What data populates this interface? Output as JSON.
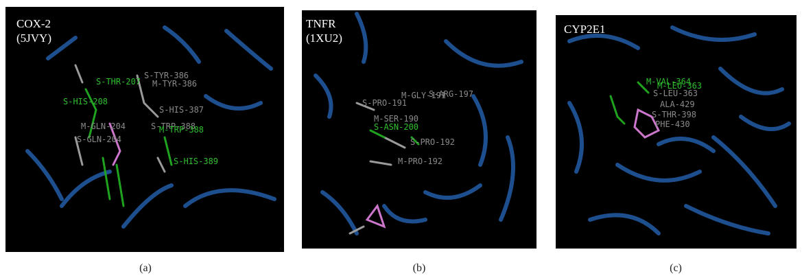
{
  "panels": [
    {
      "title": [
        "COX-2",
        "(5JVY)"
      ],
      "caption": "(a)",
      "residues": [
        {
          "label": "S-THR-207",
          "color": "#2fbf2f"
        },
        {
          "label": "S-TYR-386",
          "color": "#8a8a8a"
        },
        {
          "label": "M-TYR-386",
          "color": "#8a8a8a"
        },
        {
          "label": "S-HIS-208",
          "color": "#2fbf2f"
        },
        {
          "label": "S-HIS-387",
          "color": "#8a8a8a"
        },
        {
          "label": "M-GLN-204",
          "color": "#8a8a8a"
        },
        {
          "label": "S-TRP-388",
          "color": "#8a8a8a"
        },
        {
          "label": "M-TRP-388",
          "color": "#2fbf2f"
        },
        {
          "label": "S-GLN-204",
          "color": "#8a8a8a"
        },
        {
          "label": "S-HIS-389",
          "color": "#2fbf2f"
        }
      ]
    },
    {
      "title": [
        "TNFR",
        "(1XU2)"
      ],
      "caption": "(b)",
      "residues": [
        {
          "label": "M-GLY-191",
          "color": "#8a8a8a"
        },
        {
          "label": "S-ARG-197",
          "color": "#8a8a8a"
        },
        {
          "label": "S-PRO-191",
          "color": "#8a8a8a"
        },
        {
          "label": "M-SER-190",
          "color": "#8a8a8a"
        },
        {
          "label": "S-ASN-200",
          "color": "#2fbf2f"
        },
        {
          "label": "S-PRO-192",
          "color": "#8a8a8a"
        },
        {
          "label": "M-PRO-192",
          "color": "#8a8a8a"
        }
      ]
    },
    {
      "title": [
        "CYP2E1"
      ],
      "caption": "(c)",
      "residues": [
        {
          "label": "M-VAL-364",
          "color": "#2fbf2f"
        },
        {
          "label": "M-LEU-363",
          "color": "#2fbf2f"
        },
        {
          "label": "S-LEU-363",
          "color": "#8a8a8a"
        },
        {
          "label": "ALA-429",
          "color": "#8a8a8a"
        },
        {
          "label": "S-THR-398",
          "color": "#8a8a8a"
        },
        {
          "label": "PHE-430",
          "color": "#8a8a8a"
        }
      ]
    }
  ]
}
